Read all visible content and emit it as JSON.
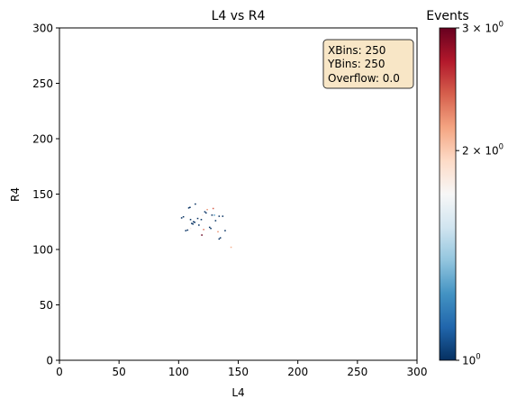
{
  "chart_data": {
    "type": "heatmap",
    "title": "L4 vs R4",
    "xlabel": "L4",
    "ylabel": "R4",
    "xlim": [
      0,
      300
    ],
    "ylim": [
      0,
      300
    ],
    "xticks": [
      0,
      50,
      100,
      150,
      200,
      250,
      300
    ],
    "yticks": [
      0,
      50,
      100,
      150,
      200,
      250,
      300
    ],
    "grid": false,
    "stats_box": {
      "lines": [
        "XBins: 250",
        "YBins: 250",
        "Overflow: 0.0"
      ],
      "placement": "top-right",
      "facecolor": "#f5deb3"
    },
    "colorbar": {
      "label": "Events",
      "scale": "log",
      "min": 1,
      "max": 3,
      "colormap": "RdBu_r",
      "ticks": [
        {
          "value": 1,
          "base": "10",
          "exp": "0",
          "coef": ""
        },
        {
          "value": 2,
          "base": "10",
          "exp": "0",
          "coef": "2 × "
        },
        {
          "value": 3,
          "base": "10",
          "exp": "0",
          "coef": "3 × "
        }
      ]
    },
    "bin_width": 1.2,
    "bins": [
      {
        "x": 102.5,
        "y": 128.5,
        "v": 1
      },
      {
        "x": 104,
        "y": 129.5,
        "v": 1
      },
      {
        "x": 106,
        "y": 117,
        "v": 1
      },
      {
        "x": 107.5,
        "y": 117.5,
        "v": 1
      },
      {
        "x": 108.5,
        "y": 137.5,
        "v": 1
      },
      {
        "x": 109.5,
        "y": 138,
        "v": 1
      },
      {
        "x": 110,
        "y": 127,
        "v": 1
      },
      {
        "x": 110,
        "y": 119,
        "v": 1.8
      },
      {
        "x": 111,
        "y": 123.5,
        "v": 1
      },
      {
        "x": 112,
        "y": 123,
        "v": 1
      },
      {
        "x": 112.5,
        "y": 125,
        "v": 1
      },
      {
        "x": 113.5,
        "y": 124.5,
        "v": 1
      },
      {
        "x": 114,
        "y": 141,
        "v": 1
      },
      {
        "x": 115,
        "y": 125,
        "v": 1.7
      },
      {
        "x": 116,
        "y": 128,
        "v": 1
      },
      {
        "x": 117,
        "y": 122,
        "v": 1
      },
      {
        "x": 119,
        "y": 127,
        "v": 1
      },
      {
        "x": 119.5,
        "y": 113,
        "v": 3
      },
      {
        "x": 120,
        "y": 131,
        "v": 1.8
      },
      {
        "x": 121,
        "y": 118,
        "v": 2.3
      },
      {
        "x": 122,
        "y": 134,
        "v": 1
      },
      {
        "x": 123,
        "y": 133,
        "v": 1
      },
      {
        "x": 124,
        "y": 136,
        "v": 2.2
      },
      {
        "x": 126,
        "y": 120,
        "v": 1
      },
      {
        "x": 127,
        "y": 119,
        "v": 1
      },
      {
        "x": 128,
        "y": 131,
        "v": 1
      },
      {
        "x": 129,
        "y": 137,
        "v": 2.4
      },
      {
        "x": 130,
        "y": 131,
        "v": 1.3
      },
      {
        "x": 131,
        "y": 126,
        "v": 1
      },
      {
        "x": 133,
        "y": 116,
        "v": 2.2
      },
      {
        "x": 134,
        "y": 109.5,
        "v": 1
      },
      {
        "x": 135,
        "y": 110.5,
        "v": 1
      },
      {
        "x": 134,
        "y": 130,
        "v": 1
      },
      {
        "x": 137,
        "y": 130,
        "v": 1
      },
      {
        "x": 139,
        "y": 117,
        "v": 1
      },
      {
        "x": 144,
        "y": 102,
        "v": 2.1
      }
    ]
  }
}
